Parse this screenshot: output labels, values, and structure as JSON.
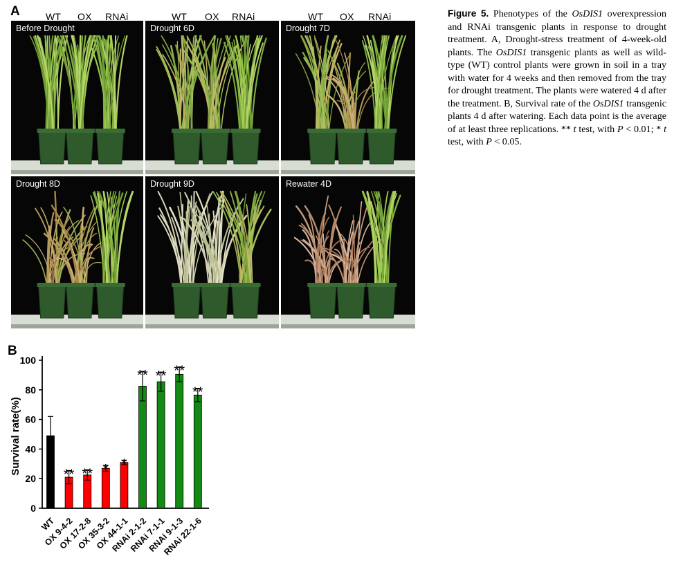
{
  "panel_a": {
    "letter": "A",
    "column_labels": [
      "WT",
      "OX",
      "RNAi"
    ],
    "photos": [
      {
        "label": "Before Drought",
        "state": [
          "green",
          "green",
          "green"
        ]
      },
      {
        "label": "Drought 6D",
        "state": [
          "mild",
          "mild",
          "green"
        ]
      },
      {
        "label": "Drought 7D",
        "state": [
          "mild",
          "dry",
          "green"
        ]
      },
      {
        "label": "Drought 8D",
        "state": [
          "dry",
          "dry",
          "green"
        ]
      },
      {
        "label": "Drought 9D",
        "state": [
          "pale",
          "pale",
          "mild"
        ]
      },
      {
        "label": "Rewater 4D",
        "state": [
          "dead",
          "dead",
          "green"
        ]
      }
    ]
  },
  "panel_b": {
    "letter": "B",
    "colors": {
      "black": "#000000",
      "red": "#ff0000",
      "green": "#138a13"
    }
  },
  "caption": {
    "fig_label": "Figure 5.",
    "text_1": " Phenotypes of the ",
    "gene_1": "OsDIS1",
    "text_2": " overexpression and RNAi transgenic plants in response to drought treatment. A, Drought-stress treatment of 4-week-old plants. The ",
    "gene_2": "OsDIS1",
    "text_3": " transgenic plants as well as wild-type (WT) control plants were grown in soil in a tray with water for 4 weeks and then removed from the tray for drought treatment. The plants were watered 4 d after the treatment. B, Survival rate of the ",
    "gene_3": "OsDIS1",
    "text_4": " transgenic plants 4 d after watering. Each data point is the average of at least three replications. ** ",
    "t_1": "t",
    "text_5": " test, with ",
    "p_1": "P",
    "text_6": " < 0.01; * ",
    "t_2": "t",
    "text_7": " test, with ",
    "p_2": "P",
    "text_8": " < 0.05."
  },
  "chart_data": {
    "type": "bar",
    "ylabel": "Survival rate(%)",
    "ylim": [
      0,
      100
    ],
    "yticks": [
      0,
      20,
      40,
      60,
      80,
      100
    ],
    "categories": [
      "WT",
      "OX 9-4-2",
      "OX 17-2-8",
      "OX 35-3-2",
      "OX 44-1-1",
      "RNAi 2-1-2",
      "RNAi 7-1-1",
      "RNAi 9-1-3",
      "RNAi 22-1-6"
    ],
    "values": [
      49,
      21,
      22.5,
      27,
      31,
      82.5,
      85.5,
      90.5,
      76.5
    ],
    "errors": [
      13,
      4.5,
      3.5,
      2,
      1.5,
      10,
      6.5,
      5,
      4.5
    ],
    "significance": [
      "",
      "**",
      "**",
      "*",
      "*",
      "**",
      "**",
      "**",
      "**"
    ],
    "bar_colors": [
      "#000000",
      "#ff0000",
      "#ff0000",
      "#ff0000",
      "#ff0000",
      "#138a13",
      "#138a13",
      "#138a13",
      "#138a13"
    ]
  }
}
